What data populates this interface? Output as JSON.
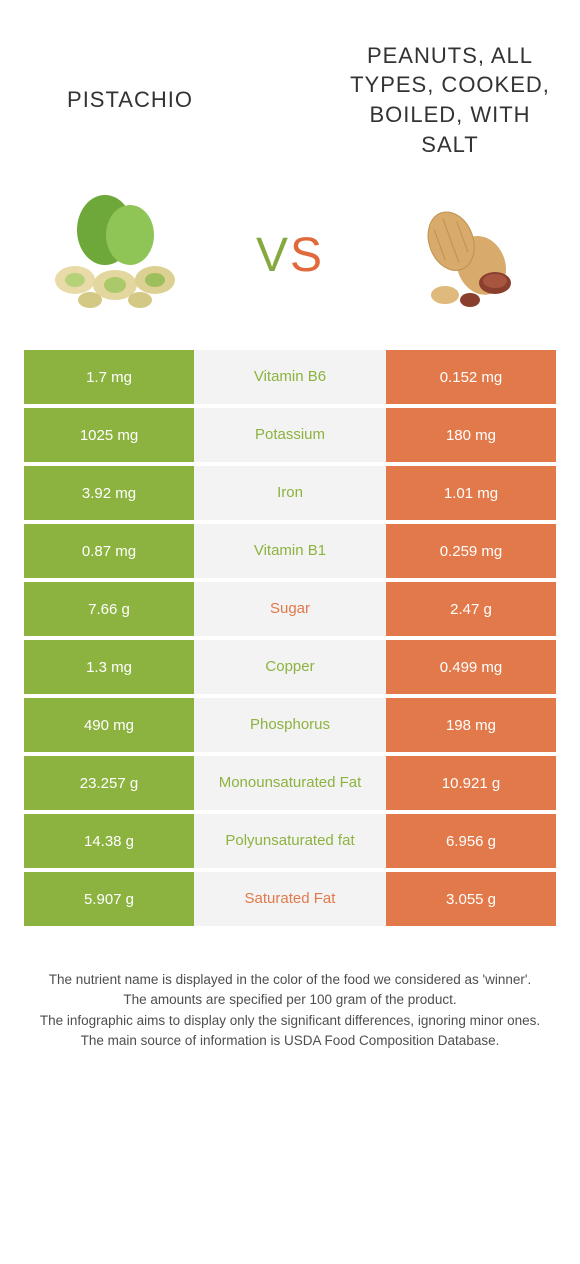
{
  "header": {
    "left_title": "Pistachio",
    "right_title": "Peanuts, all types, cooked, boiled, with salt",
    "vs_v": "V",
    "vs_s": "S"
  },
  "colors": {
    "left": "#8cb33f",
    "right": "#e2794a",
    "mid_bg": "#f3f3f3"
  },
  "rows": [
    {
      "left": "1.7 mg",
      "name": "Vitamin B6",
      "right": "0.152 mg",
      "winner": "left"
    },
    {
      "left": "1025 mg",
      "name": "Potassium",
      "right": "180 mg",
      "winner": "left"
    },
    {
      "left": "3.92 mg",
      "name": "Iron",
      "right": "1.01 mg",
      "winner": "left"
    },
    {
      "left": "0.87 mg",
      "name": "Vitamin B1",
      "right": "0.259 mg",
      "winner": "left"
    },
    {
      "left": "7.66 g",
      "name": "Sugar",
      "right": "2.47 g",
      "winner": "right"
    },
    {
      "left": "1.3 mg",
      "name": "Copper",
      "right": "0.499 mg",
      "winner": "left"
    },
    {
      "left": "490 mg",
      "name": "Phosphorus",
      "right": "198 mg",
      "winner": "left"
    },
    {
      "left": "23.257 g",
      "name": "Monounsaturated Fat",
      "right": "10.921 g",
      "winner": "left"
    },
    {
      "left": "14.38 g",
      "name": "Polyunsaturated fat",
      "right": "6.956 g",
      "winner": "left"
    },
    {
      "left": "5.907 g",
      "name": "Saturated Fat",
      "right": "3.055 g",
      "winner": "right"
    }
  ],
  "footer": {
    "line1": "The nutrient name is displayed in the color of the food we considered as 'winner'.",
    "line2": "The amounts are specified per 100 gram of the product.",
    "line3": "The infographic aims to display only the significant differences, ignoring minor ones.",
    "line4": "The main source of information is USDA Food Composition Database."
  }
}
